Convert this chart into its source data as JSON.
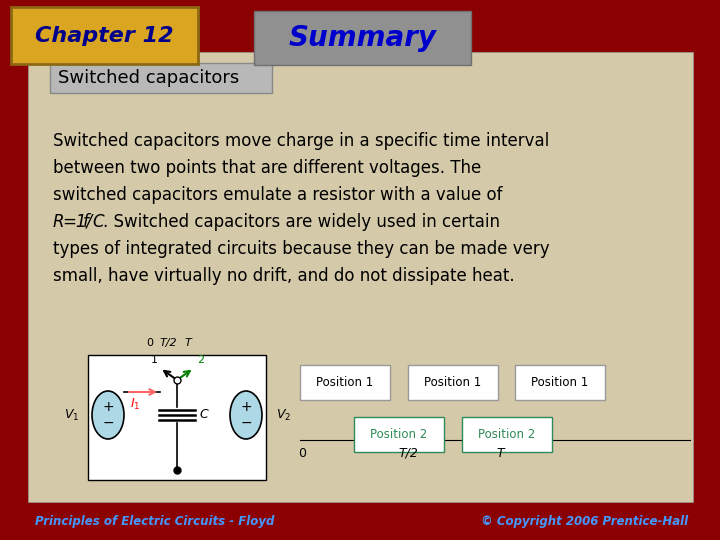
{
  "bg_color": "#8B0000",
  "slide_bg": "#D4C9A8",
  "chapter_box_color": "#DAA520",
  "chapter_text": "Chapter 12",
  "chapter_text_color": "#00008B",
  "summary_box_color": "#909090",
  "summary_text": "Summary",
  "summary_text_color": "#0000CC",
  "subtitle_box_color": "#A0A0A0",
  "subtitle_text": "Switched capacitors",
  "subtitle_text_color": "#000000",
  "body_text_color": "#000000",
  "footer_left": "Principles of Electric Circuits - Floyd",
  "footer_right": "© Copyright 2006 Prentice-Hall",
  "footer_color": "#4499FF",
  "position1_color": "#000000",
  "position2_color": "#2E8B57"
}
